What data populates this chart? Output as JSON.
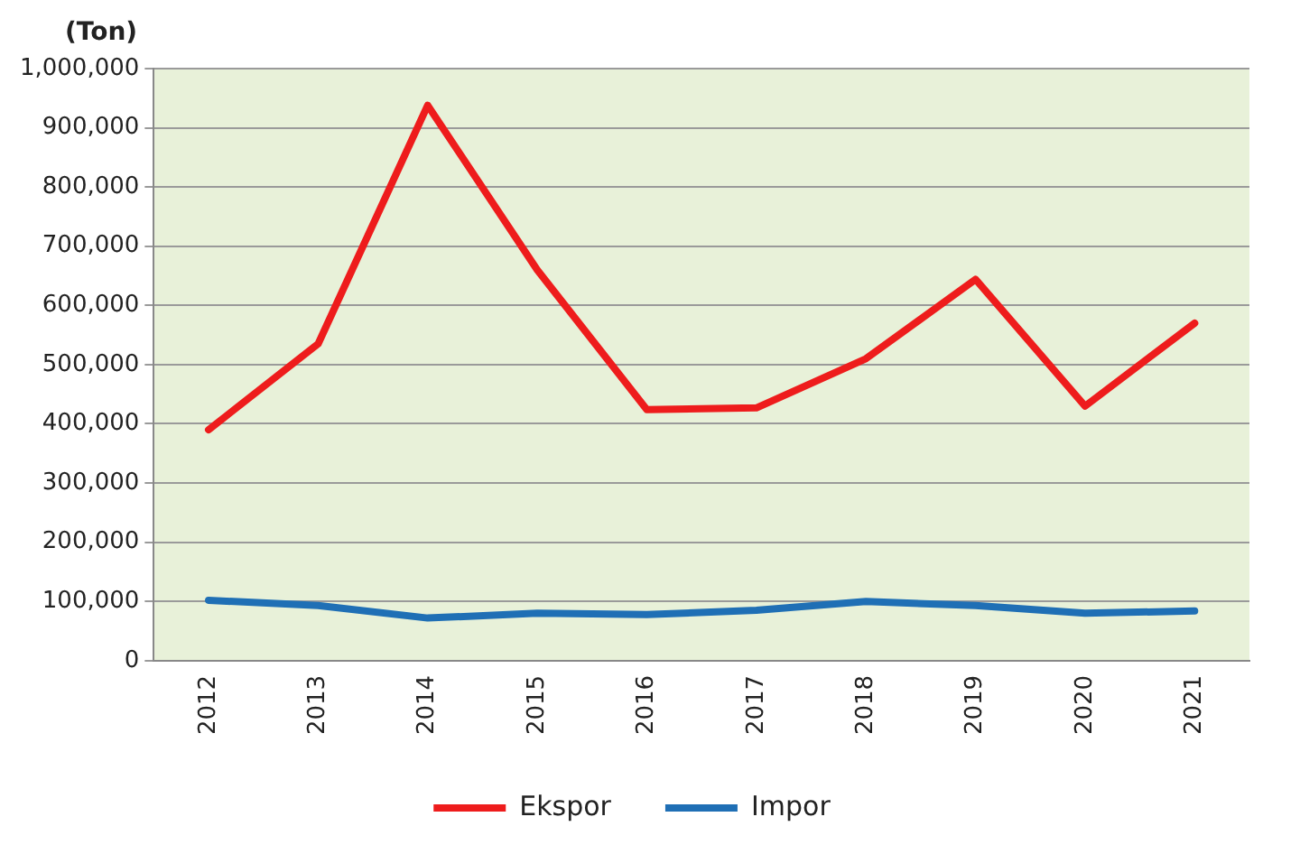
{
  "chart_data": {
    "type": "line",
    "ylabel": "(Ton)",
    "categories": [
      "2012",
      "2013",
      "2014",
      "2015",
      "2016",
      "2017",
      "2018",
      "2019",
      "2020",
      "2021"
    ],
    "series": [
      {
        "name": "Ekspor",
        "color": "#ee1c1c",
        "values": [
          390000,
          535000,
          938000,
          660000,
          424000,
          427000,
          510000,
          644000,
          430000,
          570000
        ]
      },
      {
        "name": "Impor",
        "color": "#1f6fb5",
        "values": [
          102000,
          93000,
          72000,
          80000,
          78000,
          85000,
          100000,
          93000,
          80000,
          84000
        ]
      }
    ],
    "ylim": [
      0,
      1000000
    ],
    "yticks": [
      0,
      {
        "value": 100000,
        "label": "100,000"
      },
      {
        "value": 200000,
        "label": "200,000"
      },
      {
        "value": 300000,
        "label": "300,000"
      },
      {
        "value": 400000,
        "label": "400,000"
      },
      {
        "value": 500000,
        "label": "500,000"
      },
      {
        "value": 600000,
        "label": "600,000"
      },
      {
        "value": 700000,
        "label": "700,000"
      },
      {
        "value": 800000,
        "label": "800,000"
      },
      {
        "value": 900000,
        "label": "900,000"
      },
      {
        "value": 1000000,
        "label": "1,000,000"
      }
    ],
    "grid": "y",
    "legend": "bottom",
    "marker": "none",
    "line_style": "solid"
  }
}
